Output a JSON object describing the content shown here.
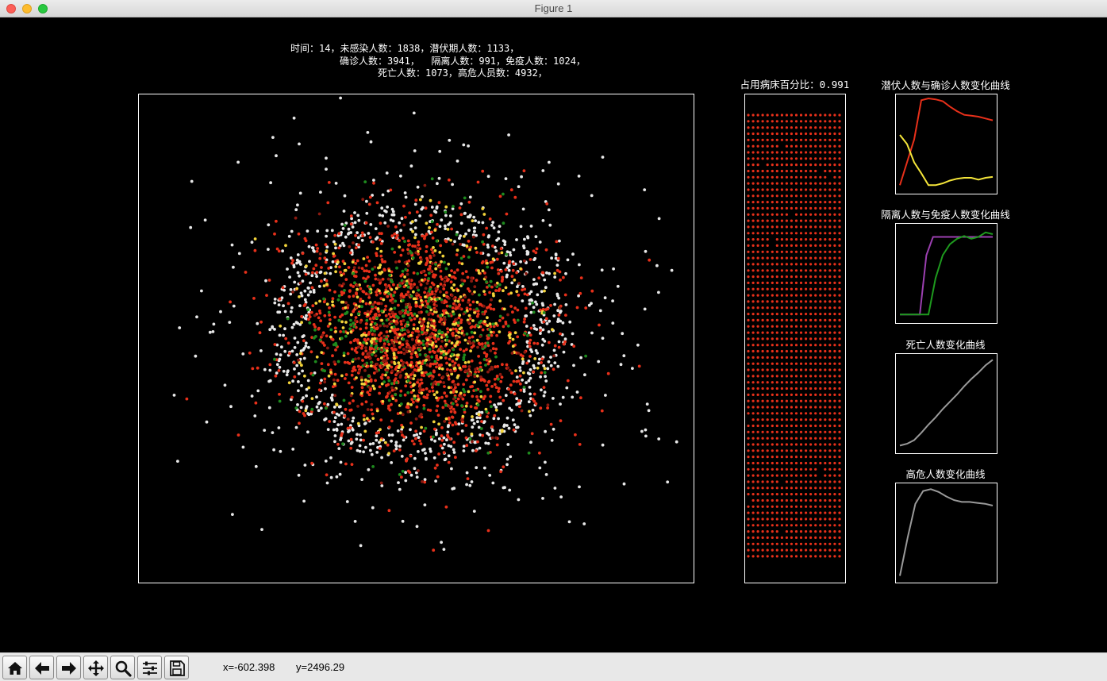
{
  "window": {
    "title": "Figure 1"
  },
  "stats": {
    "line1": "时间：14，未感染人数：1838，潜伏期人数：1133，",
    "line2": "确诊人数：3941，  隔离人数：991，免疫人数：1024，",
    "line3": "死亡人数：1073，高危人员数：4932，"
  },
  "hospital": {
    "title": "占用病床百分比：0.991",
    "occupancy": 0.991
  },
  "charts": {
    "latent_confirmed_title": "潜伏人数与确诊人数变化曲线",
    "isolated_immune_title": "隔离人数与免疫人数变化曲线",
    "death_title": "死亡人数变化曲线",
    "high_risk_title": "高危人数变化曲线"
  },
  "chart_data": [
    {
      "type": "scatter",
      "name_hidden": true,
      "counts": {
        "uninfected": 1838,
        "latent": 1133,
        "confirmed": 3941,
        "isolated": 991,
        "immune": 1024,
        "dead": 1073
      },
      "colors": {
        "uninfected": "#e8e8e8",
        "latent": "#f2d33a",
        "confirmed": "#e8301a",
        "immune": "#1e8a1e",
        "dark_red": "#8a1a10"
      }
    },
    {
      "type": "line",
      "title": "潜伏人数与确诊人数变化曲线",
      "series": [
        {
          "color": "#e8301a",
          "values": [
            0.05,
            0.3,
            0.55,
            0.98,
            1.0,
            0.99,
            0.97,
            0.91,
            0.86,
            0.82,
            0.81,
            0.8,
            0.78,
            0.76
          ]
        },
        {
          "color": "#f5e63a",
          "values": [
            0.6,
            0.5,
            0.3,
            0.18,
            0.05,
            0.05,
            0.07,
            0.1,
            0.12,
            0.13,
            0.13,
            0.11,
            0.13,
            0.14
          ]
        }
      ]
    },
    {
      "type": "line",
      "title": "隔离人数与免疫人数变化曲线",
      "series": [
        {
          "color": "#9b3fb0",
          "values": [
            0.05,
            0.05,
            0.05,
            0.05,
            0.7,
            0.9,
            0.9,
            0.9,
            0.9,
            0.9,
            0.9,
            0.9,
            0.9,
            0.9,
            0.9
          ]
        },
        {
          "color": "#1e9a1e",
          "values": [
            0.05,
            0.05,
            0.05,
            0.05,
            0.05,
            0.45,
            0.7,
            0.82,
            0.88,
            0.91,
            0.88,
            0.9,
            0.95,
            0.93
          ]
        }
      ]
    },
    {
      "type": "line",
      "title": "死亡人数变化曲线",
      "series": [
        {
          "color": "#9a9a9a",
          "values": [
            0.04,
            0.06,
            0.1,
            0.18,
            0.27,
            0.35,
            0.44,
            0.52,
            0.6,
            0.69,
            0.77,
            0.84,
            0.92,
            0.98
          ]
        }
      ]
    },
    {
      "type": "line",
      "title": "高危人数变化曲线",
      "series": [
        {
          "color": "#9a9a9a",
          "values": [
            0.03,
            0.45,
            0.82,
            0.96,
            0.98,
            0.95,
            0.9,
            0.86,
            0.84,
            0.84,
            0.83,
            0.82,
            0.8
          ]
        }
      ]
    }
  ],
  "toolbar": {
    "buttons": [
      {
        "icon": "home-icon"
      },
      {
        "icon": "back-arrow-icon"
      },
      {
        "icon": "forward-arrow-icon"
      },
      {
        "icon": "pan-icon"
      },
      {
        "icon": "zoom-icon"
      },
      {
        "icon": "configure-subplots-icon"
      },
      {
        "icon": "save-icon"
      }
    ],
    "x_coord": "x=-602.398",
    "y_coord": "y=2496.29"
  }
}
